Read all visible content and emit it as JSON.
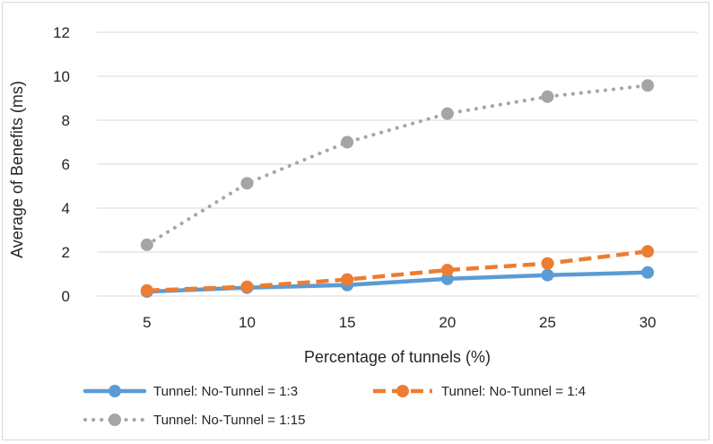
{
  "chart_data": {
    "type": "line",
    "categories": [
      "5",
      "10",
      "15",
      "20",
      "25",
      "30"
    ],
    "series": [
      {
        "name": "Tunnel: No-Tunnel = 1:3",
        "values": [
          0.2,
          0.38,
          0.5,
          0.78,
          0.95,
          1.07
        ],
        "color": "#5b9bd5",
        "style": "solid"
      },
      {
        "name": "Tunnel: No-Tunnel = 1:4",
        "values": [
          0.25,
          0.42,
          0.75,
          1.18,
          1.48,
          2.03
        ],
        "color": "#ed7d31",
        "style": "dashed"
      },
      {
        "name": "Tunnel: No-Tunnel = 1:15",
        "values": [
          2.33,
          5.13,
          7.0,
          8.3,
          9.07,
          9.58
        ],
        "color": "#a5a5a5",
        "style": "dotted"
      }
    ],
    "xlabel": "Percentage of tunnels  (%)",
    "ylabel": "Average of Benefits  (ms)",
    "ylim": [
      0,
      12
    ],
    "yticks": [
      "0",
      "2",
      "4",
      "6",
      "8",
      "10",
      "12"
    ],
    "grid": true,
    "legend_position": "bottom"
  }
}
